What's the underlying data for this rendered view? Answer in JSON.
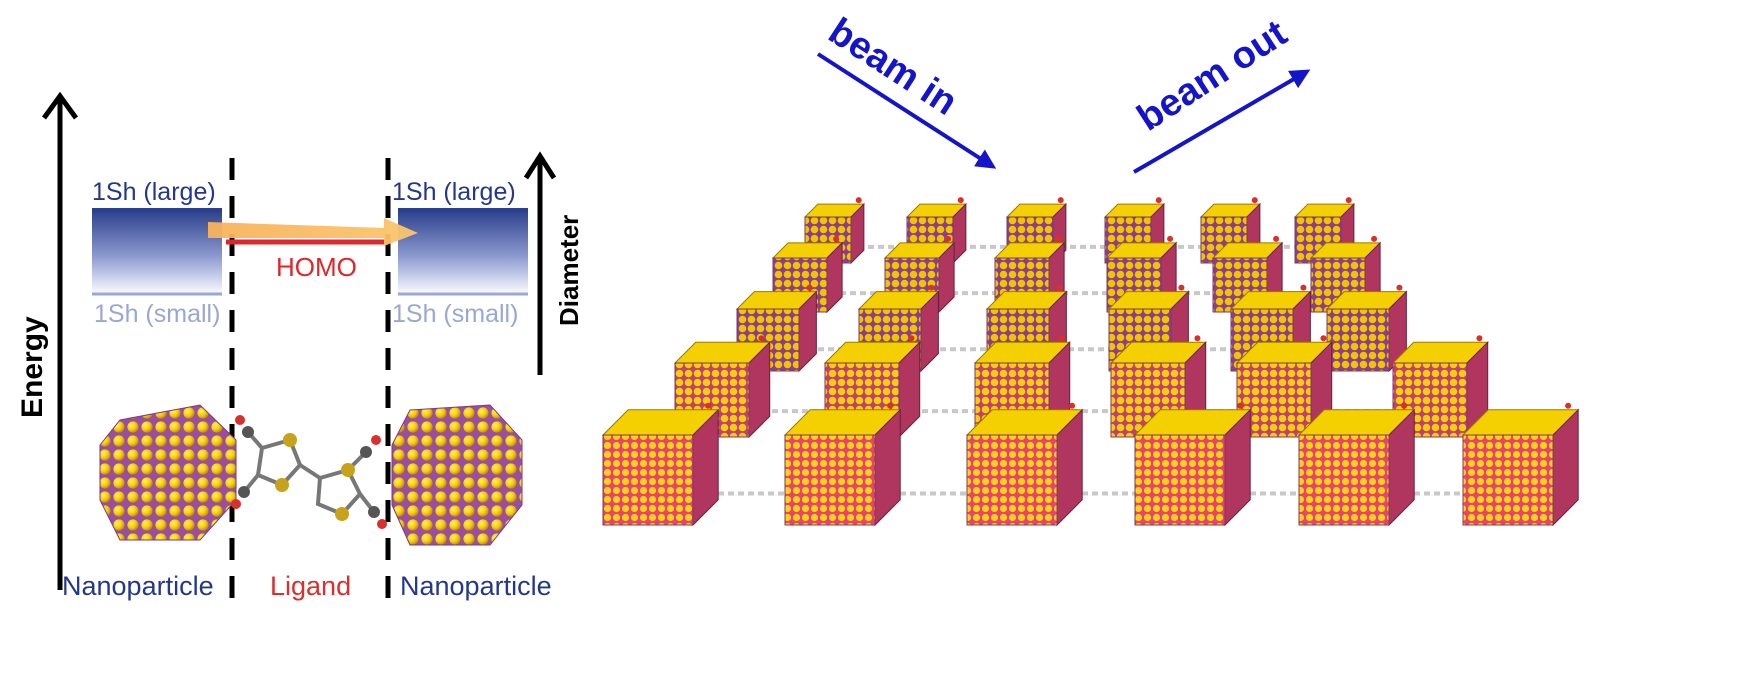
{
  "energy_diagram": {
    "axis_label": "Energy",
    "left_level_top": "1Sh (large)",
    "left_level_bottom": "1Sh (small)",
    "right_level_top": "1Sh (large)",
    "right_level_bottom": "1Sh (small)",
    "homo_label": "HOMO",
    "diameter_label": "Diameter",
    "bottom_labels": {
      "left": "Nanoparticle",
      "middle": "Ligand",
      "right": "Nanoparticle"
    }
  },
  "beam": {
    "in_label": "beam in",
    "out_label": "beam out"
  },
  "colors": {
    "level_blue": "#2b3f8c",
    "level_light": "#9aa6d6",
    "homo_red": "#e0262a",
    "transfer_arrow": "#f7b35c",
    "beam_blue": "#1414c8",
    "label_navy": "#24388a",
    "ligand_red": "#d9302c",
    "np_gold": "#f5c800",
    "np_purple": "#9b4ea0",
    "np_pink": "#e8436a"
  },
  "icons": {
    "nanoparticle": "nanoparticle-sphere-icon",
    "ligand": "ttf-ligand-molecule-icon",
    "superlattice": "nanoparticle-superlattice-icon"
  }
}
